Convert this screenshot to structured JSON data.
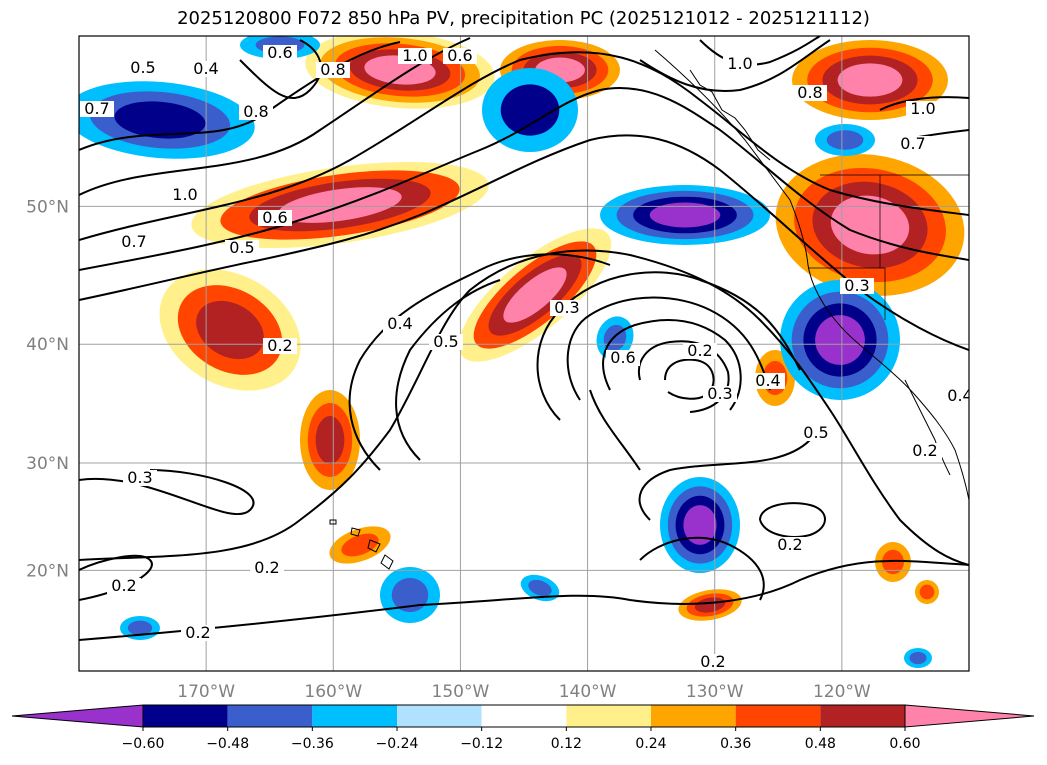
{
  "title": "2025120800 F072 850 hPa PV, precipitation PC (2025121012 - 2025121112)",
  "colors": {
    "bins": [
      "#9932cc",
      "#00008b",
      "#3a5fcd",
      "#00bfff",
      "#b0e2ff",
      "#ffffff",
      "#fff08c",
      "#ffa500",
      "#ff4500",
      "#b22222",
      "#ff82ab"
    ],
    "contour": "#000000",
    "grid": "#a0a0a0",
    "coast": "#000000"
  },
  "chart_data": {
    "type": "heatmap",
    "title": "2025120800 F072 850 hPa PV, precipitation PC (2025121012 - 2025121112)",
    "projection": "Mercator",
    "lon_range": [
      -180,
      -110
    ],
    "lat_range": [
      10,
      60
    ],
    "lat_ticks": [
      "50°N",
      "40°N",
      "30°N",
      "20°N"
    ],
    "lon_ticks": [
      "170°W",
      "160°W",
      "150°W",
      "140°W",
      "130°W",
      "120°W"
    ],
    "colorbar": {
      "levels": [
        "−0.60",
        "−0.48",
        "−0.36",
        "−0.24",
        "−0.12",
        "0.12",
        "0.24",
        "0.36",
        "0.48",
        "0.60"
      ],
      "extend": "both"
    },
    "contour_labels": [
      "0.5",
      "0.4",
      "0.6",
      "0.7",
      "0.8",
      "1.0",
      "0.8",
      "1.0",
      "0.7",
      "0.8",
      "1.0",
      "1.0",
      "0.7",
      "0.6",
      "0.5",
      "0.3",
      "0.4",
      "0.5",
      "0.2",
      "0.3",
      "0.6",
      "0.2",
      "0.3",
      "0.4",
      "0.5",
      "0.6",
      "0.3",
      "0.2",
      "0.2",
      "0.2",
      "0.2",
      "0.2",
      "0.4",
      "0.2"
    ]
  }
}
